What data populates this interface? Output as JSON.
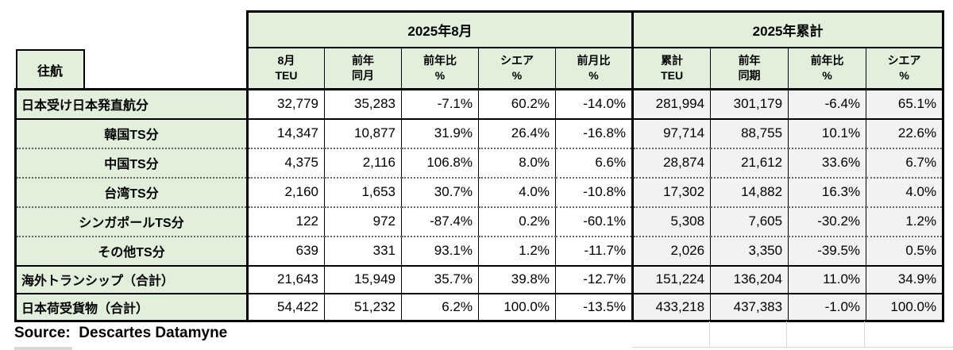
{
  "colors": {
    "header_green": "#e2efda",
    "cumulative_gray": "#f2f2f2",
    "border_black": "#000000",
    "faint_gridline_gray": "#d9d9d9"
  },
  "corner": {
    "label": "往航"
  },
  "table": {
    "groups": [
      {
        "label": "2025年8月"
      },
      {
        "label": "2025年累計"
      }
    ],
    "columns": [
      {
        "line1": "8月",
        "line2": "TEU"
      },
      {
        "line1": "前年",
        "line2": "同月"
      },
      {
        "line1": "前年比",
        "line2": "%"
      },
      {
        "line1": "シエア",
        "line2": "%"
      },
      {
        "line1": "前月比",
        "line2": "%"
      },
      {
        "line1": "累計",
        "line2": "TEU"
      },
      {
        "line1": "前年",
        "line2": "同期"
      },
      {
        "line1": "前年比",
        "line2": "%"
      },
      {
        "line1": "シエア",
        "line2": "%"
      }
    ],
    "rows": [
      {
        "label": "日本受け日本発直航分",
        "type": "main",
        "sep": "none",
        "values": [
          "32,779",
          "35,283",
          "-7.1%",
          "60.2%",
          "-14.0%",
          "281,994",
          "301,179",
          "-6.4%",
          "65.1%"
        ]
      },
      {
        "label": "韓国TS分",
        "type": "ts",
        "sep": "solid",
        "values": [
          "14,347",
          "10,877",
          "31.9%",
          "26.4%",
          "-16.8%",
          "97,714",
          "88,755",
          "10.1%",
          "22.6%"
        ]
      },
      {
        "label": "中国TS分",
        "type": "ts",
        "sep": "dotted",
        "values": [
          "4,375",
          "2,116",
          "106.8%",
          "8.0%",
          "6.6%",
          "28,874",
          "21,612",
          "33.6%",
          "6.7%"
        ]
      },
      {
        "label": "台湾TS分",
        "type": "ts",
        "sep": "dotted",
        "values": [
          "2,160",
          "1,653",
          "30.7%",
          "4.0%",
          "-10.8%",
          "17,302",
          "14,882",
          "16.3%",
          "4.0%"
        ]
      },
      {
        "label": "シンガポールTS分",
        "type": "ts",
        "sep": "dotted",
        "values": [
          "122",
          "972",
          "-87.4%",
          "0.2%",
          "-60.1%",
          "5,308",
          "7,605",
          "-30.2%",
          "1.2%"
        ]
      },
      {
        "label": "その他TS分",
        "type": "ts",
        "sep": "dotted",
        "values": [
          "639",
          "331",
          "93.1%",
          "1.2%",
          "-11.7%",
          "2,026",
          "3,350",
          "-39.5%",
          "0.5%"
        ]
      },
      {
        "label": "海外トランシップ（合計）",
        "type": "total",
        "sep": "solid",
        "values": [
          "21,643",
          "15,949",
          "35.7%",
          "39.8%",
          "-12.7%",
          "151,224",
          "136,204",
          "11.0%",
          "34.9%"
        ]
      },
      {
        "label": "日本荷受貨物（合計）",
        "type": "total",
        "sep": "solid",
        "values": [
          "54,422",
          "51,232",
          "6.2%",
          "100.0%",
          "-13.5%",
          "433,218",
          "437,383",
          "-1.0%",
          "100.0%"
        ]
      }
    ]
  },
  "source": {
    "label": "Source:  Descartes Datamyne"
  }
}
